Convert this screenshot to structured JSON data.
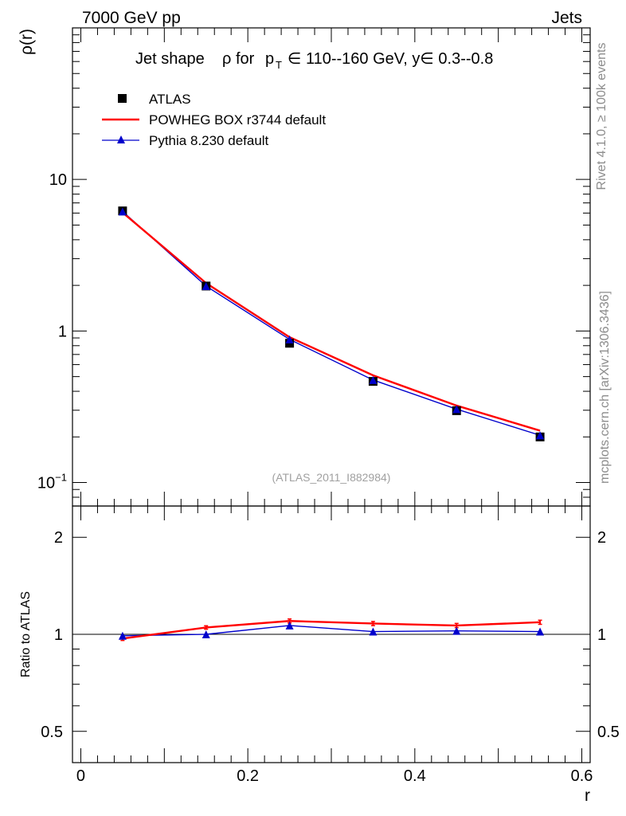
{
  "header": {
    "left": "7000 GeV pp",
    "right": "Jets"
  },
  "side": {
    "rivet": "Rivet 4.1.0, ≥ 100k events",
    "mcplots": "mcplots.cern.ch [arXiv:1306.3436]"
  },
  "watermark": "(ATLAS_2011_I882984)",
  "title": {
    "prefix": "Jet shape",
    "rho": "ρ",
    "for": "for",
    "p": "p",
    "T": "T",
    "mid": "∈ 110--160 GeV, y∈ 0.3--0.8"
  },
  "legend": [
    {
      "label": "ATLAS",
      "marker": "square",
      "color": "#000000"
    },
    {
      "label": "POWHEG BOX r3744 default",
      "marker": "line",
      "color": "#ff0000"
    },
    {
      "label": "Pythia 8.230 default",
      "marker": "triangle",
      "color": "#0000cc"
    }
  ],
  "axis_labels": {
    "y_main": "ρ(r)",
    "y_ratio": "Ratio to ATLAS",
    "x": "r"
  },
  "ticks": {
    "main_y": [
      {
        "value": 10,
        "label": "10"
      },
      {
        "value": 1,
        "label": "1"
      },
      {
        "value": 0.1,
        "label": "10",
        "exp": "−1"
      }
    ],
    "ratio_y": [
      {
        "value": 2,
        "label": "2"
      },
      {
        "value": 1,
        "label": "1"
      },
      {
        "value": 0.5,
        "label": "0.5"
      }
    ],
    "x": [
      {
        "value": 0,
        "label": "0"
      },
      {
        "value": 0.2,
        "label": "0.2"
      },
      {
        "value": 0.4,
        "label": "0.4"
      },
      {
        "value": 0.6,
        "label": "0.6"
      }
    ]
  },
  "chart_data": [
    {
      "type": "line",
      "title": "Jet shape ρ for p_T ∈ 110--160 GeV, y∈ 0.3--0.8",
      "xlabel": "r",
      "ylabel": "ρ(r)",
      "yscale": "log",
      "xlim": [
        -0.01,
        0.61
      ],
      "ylim": [
        0.07,
        100
      ],
      "x": [
        0.05,
        0.15,
        0.25,
        0.35,
        0.45,
        0.55
      ],
      "series": [
        {
          "name": "ATLAS",
          "style": "markers",
          "color": "#000000",
          "values": [
            6.2,
            1.98,
            0.83,
            0.465,
            0.298,
            0.2
          ]
        },
        {
          "name": "POWHEG BOX r3744 default",
          "style": "line",
          "color": "#ff0000",
          "values": [
            6.05,
            2.07,
            0.91,
            0.51,
            0.322,
            0.22
          ]
        },
        {
          "name": "Pythia 8.230 default",
          "style": "line+triangles",
          "color": "#0000cc",
          "values": [
            6.15,
            1.98,
            0.88,
            0.475,
            0.305,
            0.205
          ]
        }
      ]
    },
    {
      "type": "line",
      "xlabel": "r",
      "ylabel": "Ratio to ATLAS",
      "yscale": "log",
      "xlim": [
        -0.01,
        0.61
      ],
      "ylim": [
        0.4,
        2.5
      ],
      "reference": 1,
      "x": [
        0.05,
        0.15,
        0.25,
        0.35,
        0.45,
        0.55
      ],
      "series": [
        {
          "name": "POWHEG BOX r3744 default",
          "color": "#ff0000",
          "values": [
            0.97,
            1.05,
            1.1,
            1.08,
            1.065,
            1.09
          ],
          "errors": [
            0.013,
            0.013,
            0.016,
            0.016,
            0.016,
            0.016
          ]
        },
        {
          "name": "Pythia 8.230 default",
          "color": "#0000cc",
          "values": [
            0.99,
            1.0,
            1.065,
            1.02,
            1.025,
            1.02
          ]
        }
      ]
    }
  ]
}
